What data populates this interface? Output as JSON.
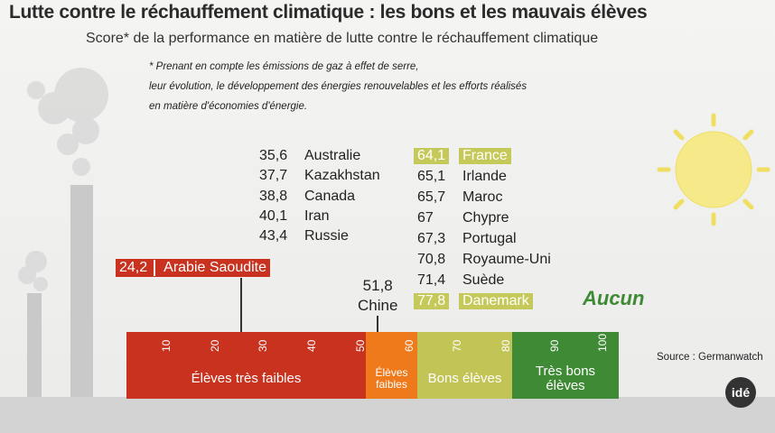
{
  "header": {
    "title": "Lutte contre le réchauffement climatique : les bons et les mauvais élèves",
    "subtitle": "Score* de la performance en matière de lutte contre le réchauffement climatique"
  },
  "footnote": [
    "* Prenant en compte les émissions de gaz à effet de serre,",
    "leur évolution, le développement des énergies renouvelables et les efforts réalisés",
    "en matière d'économies d'énergie."
  ],
  "left_list": [
    {
      "value": "35,6",
      "label": "Australie"
    },
    {
      "value": "37,7",
      "label": "Kazakhstan"
    },
    {
      "value": "38,8",
      "label": "Canada"
    },
    {
      "value": "40,1",
      "label": "Iran"
    },
    {
      "value": "43,4",
      "label": "Russie"
    }
  ],
  "right_list": [
    {
      "value": "64,1",
      "label": "France",
      "highlight": true
    },
    {
      "value": "65,1",
      "label": "Irlande"
    },
    {
      "value": "65,7",
      "label": "Maroc"
    },
    {
      "value": "67",
      "label": "Chypre"
    },
    {
      "value": "67,3",
      "label": "Portugal"
    },
    {
      "value": "70,8",
      "label": "Royaume-Uni"
    },
    {
      "value": "71,4",
      "label": "Suède"
    },
    {
      "value": "77,8",
      "label": "Danemark",
      "highlight": true
    }
  ],
  "callouts": {
    "lowest": {
      "value": "24,2",
      "label": "Arabie Saoudite"
    },
    "china": {
      "value": "51,8",
      "label": "Chine"
    },
    "none": "Aucun"
  },
  "scale": {
    "ticks": [
      "10",
      "20",
      "30",
      "40",
      "50",
      "60",
      "70",
      "80",
      "90",
      "100"
    ],
    "bands": [
      {
        "label": "Élèves très faibles",
        "color": "#c8321e"
      },
      {
        "label": "Élèves\nfaibles",
        "color": "#ee7a1c"
      },
      {
        "label": "Bons élèves",
        "color": "#c3c456"
      },
      {
        "label": "Très bons\nélèves",
        "color": "#3f8a35"
      }
    ]
  },
  "source": "Source : Germanwatch",
  "logo": "idé"
}
